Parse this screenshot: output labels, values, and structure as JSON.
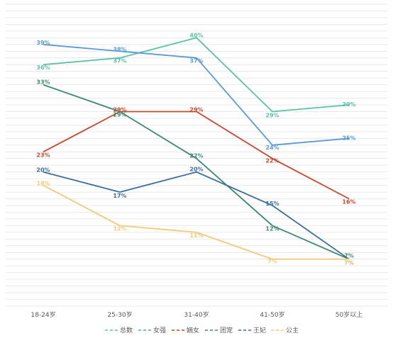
{
  "chart_data": {
    "type": "line",
    "categories": [
      "18-24岁",
      "25-30岁",
      "31-40岁",
      "41-50岁",
      "50岁以上"
    ],
    "ylim": [
      0,
      45
    ],
    "grid": true,
    "legend_position": "bottom",
    "series": [
      {
        "name": "总数",
        "color": "#5BC3A2",
        "values": [
          36,
          37,
          40,
          29,
          30
        ],
        "labels": [
          "36%",
          "37%",
          "40%",
          "29%",
          "30%"
        ]
      },
      {
        "name": "女强",
        "color": "#5B9BD5",
        "values": [
          39,
          38,
          37,
          24,
          25
        ],
        "labels": [
          "39%",
          "38%",
          "37%",
          "24%",
          "25%"
        ]
      },
      {
        "name": "嫡女",
        "color": "#C8472D",
        "values": [
          23,
          29,
          29,
          22,
          16
        ],
        "labels": [
          "23%",
          "29%",
          "29%",
          "22%",
          "16%"
        ]
      },
      {
        "name": "团宠",
        "color": "#3E8A6E",
        "values": [
          33,
          29,
          22,
          12,
          7
        ],
        "labels": [
          "33%",
          "29%",
          "22%",
          "12%",
          "7%"
        ]
      },
      {
        "name": "王妃",
        "color": "#3A6E9C",
        "values": [
          20,
          17,
          20,
          15,
          7
        ],
        "labels": [
          "20%",
          "17%",
          "20%",
          "15%",
          "7%"
        ]
      },
      {
        "name": "公主",
        "color": "#F5C97A",
        "values": [
          18,
          12,
          11,
          7,
          7
        ],
        "labels": [
          "18%",
          "12%",
          "11%",
          "7%",
          "7%"
        ]
      }
    ]
  }
}
